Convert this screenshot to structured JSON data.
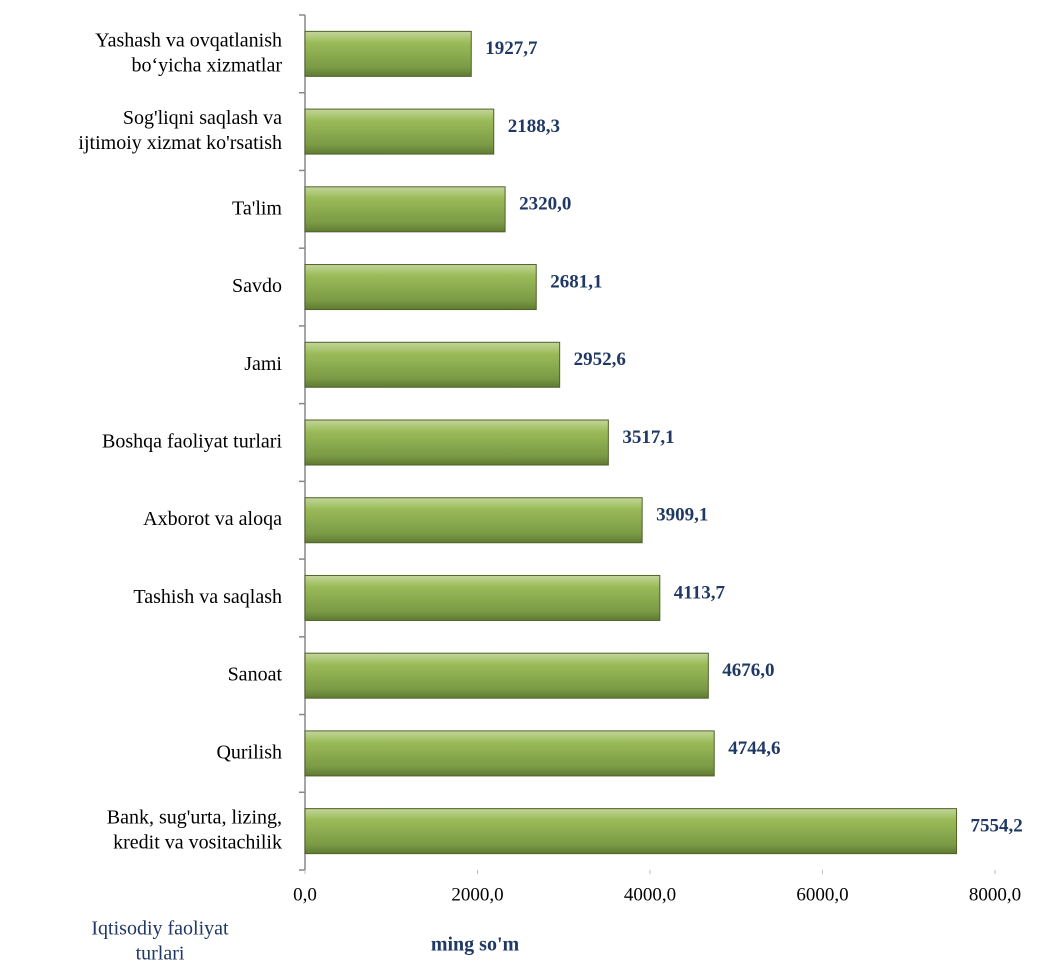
{
  "chart_data": {
    "type": "bar",
    "orientation": "horizontal",
    "categories": [
      "Yashash va ovqatlanish\nbo‘yicha xizmatlar",
      "Sog'liqni saqlash va\nijtimoiy xizmat ko'rsatish",
      "Ta'lim",
      "Savdo",
      "Jami",
      "Boshqa faoliyat turlari",
      "Axborot va aloqa",
      "Tashish va saqlash",
      "Sanoat",
      "Qurilish",
      "Bank, sug'urta,  lizing,\nkredit va vositachilik"
    ],
    "values": [
      1927.7,
      2188.3,
      2320.0,
      2681.1,
      2952.6,
      3517.1,
      3909.1,
      4113.7,
      4676.0,
      4744.6,
      7554.2
    ],
    "value_labels": [
      "1927,7",
      "2188,3",
      "2320,0",
      "2681,1",
      "2952,6",
      "3517,1",
      "3909,1",
      "4113,7",
      "4676,0",
      "4744,6",
      "7554,2"
    ],
    "color": "#8fb05a",
    "xlim": [
      0,
      8000
    ],
    "xticks": [
      {
        "value": 0,
        "label": "0,0"
      },
      {
        "value": 2000,
        "label": "2000,0"
      },
      {
        "value": 4000,
        "label": "4000,0"
      },
      {
        "value": 6000,
        "label": "6000,0"
      },
      {
        "value": 8000,
        "label": "8000,0"
      }
    ],
    "x_label": "ming so'm",
    "y_label": "Iqtisodiy faoliyat\nturlari"
  }
}
